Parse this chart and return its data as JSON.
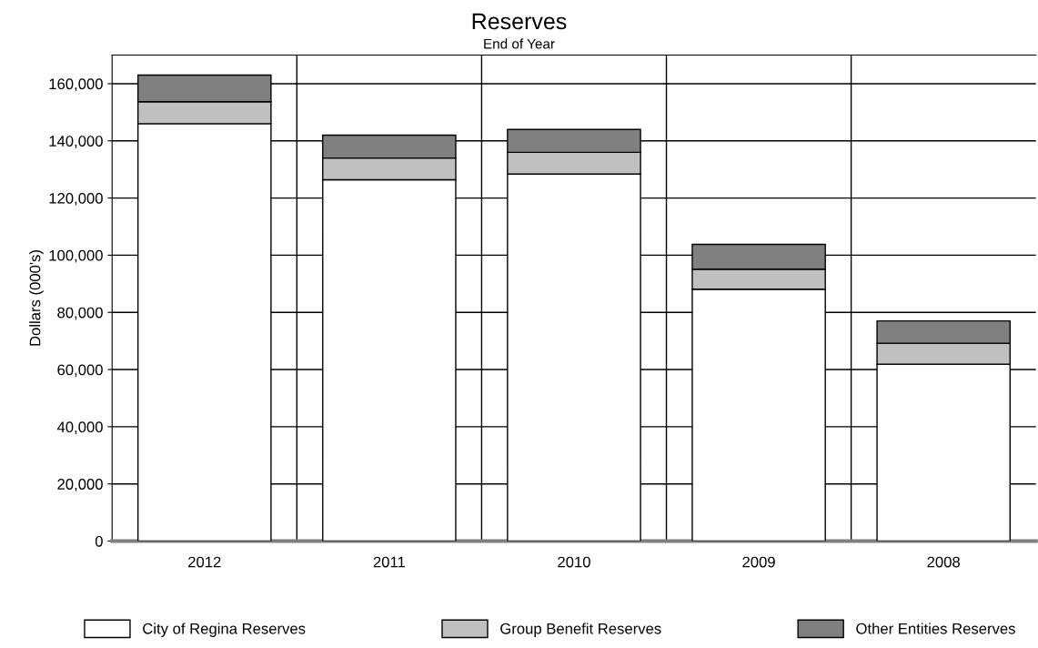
{
  "chart_data": {
    "type": "bar",
    "title": "Reserves",
    "subtitle": "End of Year",
    "ylabel": "Dollars (000's)",
    "categories": [
      "2012",
      "2011",
      "2010",
      "2009",
      "2008"
    ],
    "stacked": true,
    "series": [
      {
        "name": "City of Regina Reserves",
        "color": "#ffffff",
        "values": [
          146000,
          126400,
          128400,
          88100,
          61900
        ]
      },
      {
        "name": "Group Benefit Reserves",
        "color": "#c0c0c0",
        "values": [
          7700,
          7600,
          7600,
          7000,
          7300
        ]
      },
      {
        "name": "Other Entities Reserves",
        "color": "#808080",
        "values": [
          9300,
          8000,
          8000,
          8700,
          7800
        ]
      }
    ],
    "ylim": [
      0,
      170000
    ],
    "yticks": [
      {
        "value": 0,
        "label": "0"
      },
      {
        "value": 20000,
        "label": "20,000"
      },
      {
        "value": 40000,
        "label": "40,000"
      },
      {
        "value": 60000,
        "label": "60,000"
      },
      {
        "value": 80000,
        "label": "80,000"
      },
      {
        "value": 100000,
        "label": "100,000"
      },
      {
        "value": 120000,
        "label": "120,000"
      },
      {
        "value": 140000,
        "label": "140,000"
      },
      {
        "value": 160000,
        "label": "160,000"
      }
    ],
    "grid": true,
    "legend": "bottom"
  }
}
